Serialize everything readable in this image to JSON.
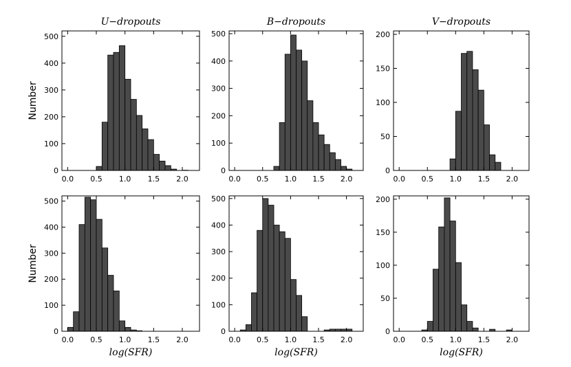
{
  "chart_data": [
    {
      "type": "bar",
      "title": "U−dropouts",
      "xlabel": "",
      "ylabel": "Number",
      "xlim": [
        -0.1,
        2.3
      ],
      "ylim": [
        0,
        520
      ],
      "xticks": [
        0.0,
        0.5,
        1.0,
        1.5,
        2.0
      ],
      "xtick_labels": [
        "0.0",
        "0.5",
        "1.0",
        "1.5",
        "2.0"
      ],
      "yticks": [
        0,
        100,
        200,
        300,
        400,
        500
      ],
      "ytick_labels": [
        "0",
        "100",
        "200",
        "300",
        "400",
        "500"
      ],
      "bin_width": 0.1,
      "x": [
        0.5,
        0.6,
        0.7,
        0.8,
        0.9,
        1.0,
        1.1,
        1.2,
        1.3,
        1.4,
        1.5,
        1.6,
        1.7,
        1.8,
        1.9,
        2.0
      ],
      "values": [
        15,
        180,
        430,
        440,
        465,
        340,
        265,
        205,
        155,
        115,
        60,
        35,
        18,
        5,
        0,
        1
      ]
    },
    {
      "type": "bar",
      "title": "B−dropouts",
      "xlabel": "",
      "ylabel": "",
      "xlim": [
        -0.1,
        2.3
      ],
      "ylim": [
        0,
        510
      ],
      "xticks": [
        0.0,
        0.5,
        1.0,
        1.5,
        2.0
      ],
      "xtick_labels": [
        "0.0",
        "0.5",
        "1.0",
        "1.5",
        "2.0"
      ],
      "yticks": [
        0,
        100,
        200,
        300,
        400,
        500
      ],
      "ytick_labels": [
        "0",
        "100",
        "200",
        "300",
        "400",
        "500"
      ],
      "bin_width": 0.1,
      "x": [
        0.7,
        0.8,
        0.9,
        1.0,
        1.1,
        1.2,
        1.3,
        1.4,
        1.5,
        1.6,
        1.7,
        1.8,
        1.9,
        2.0
      ],
      "values": [
        15,
        175,
        425,
        495,
        440,
        400,
        255,
        175,
        130,
        95,
        65,
        40,
        15,
        5
      ]
    },
    {
      "type": "bar",
      "title": "V−dropouts",
      "xlabel": "",
      "ylabel": "",
      "xlim": [
        -0.1,
        2.3
      ],
      "ylim": [
        0,
        205
      ],
      "xticks": [
        0.0,
        0.5,
        1.0,
        1.5,
        2.0
      ],
      "xtick_labels": [
        "0.0",
        "0.5",
        "1.0",
        "1.5",
        "2.0"
      ],
      "yticks": [
        0,
        50,
        100,
        150,
        200
      ],
      "ytick_labels": [
        "0",
        "50",
        "100",
        "150",
        "200"
      ],
      "bin_width": 0.1,
      "x": [
        0.9,
        1.0,
        1.1,
        1.2,
        1.3,
        1.4,
        1.5,
        1.6,
        1.7
      ],
      "values": [
        17,
        87,
        172,
        175,
        148,
        118,
        67,
        23,
        12
      ]
    },
    {
      "type": "bar",
      "title": "",
      "xlabel": "log(SFR)",
      "ylabel": "Number",
      "xlim": [
        -0.1,
        2.3
      ],
      "ylim": [
        0,
        520
      ],
      "xticks": [
        0.0,
        0.5,
        1.0,
        1.5,
        2.0
      ],
      "xtick_labels": [
        "0.0",
        "0.5",
        "1.0",
        "1.5",
        "2.0"
      ],
      "yticks": [
        0,
        100,
        200,
        300,
        400,
        500
      ],
      "ytick_labels": [
        "0",
        "100",
        "200",
        "300",
        "400",
        "500"
      ],
      "bin_width": 0.1,
      "x": [
        0.0,
        0.1,
        0.2,
        0.3,
        0.4,
        0.5,
        0.6,
        0.7,
        0.8,
        0.9,
        1.0,
        1.1,
        1.2
      ],
      "values": [
        15,
        75,
        410,
        515,
        505,
        430,
        320,
        215,
        155,
        40,
        15,
        5,
        2
      ]
    },
    {
      "type": "bar",
      "title": "",
      "xlabel": "log(SFR)",
      "ylabel": "",
      "xlim": [
        -0.1,
        2.3
      ],
      "ylim": [
        0,
        510
      ],
      "xticks": [
        0.0,
        0.5,
        1.0,
        1.5,
        2.0
      ],
      "xtick_labels": [
        "0.0",
        "0.5",
        "1.0",
        "1.5",
        "2.0"
      ],
      "yticks": [
        0,
        100,
        200,
        300,
        400,
        500
      ],
      "ytick_labels": [
        "0",
        "100",
        "200",
        "300",
        "400",
        "500"
      ],
      "bin_width": 0.1,
      "x": [
        0.1,
        0.2,
        0.3,
        0.4,
        0.5,
        0.6,
        0.7,
        0.8,
        0.9,
        1.0,
        1.1,
        1.2,
        1.6,
        1.7,
        1.8,
        1.9,
        2.0
      ],
      "values": [
        5,
        25,
        145,
        380,
        500,
        475,
        400,
        375,
        350,
        195,
        135,
        55,
        5,
        8,
        8,
        8,
        8
      ]
    },
    {
      "type": "bar",
      "title": "",
      "xlabel": "log(SFR)",
      "ylabel": "",
      "xlim": [
        -0.1,
        2.3
      ],
      "ylim": [
        0,
        205
      ],
      "xticks": [
        0.0,
        0.5,
        1.0,
        1.5,
        2.0
      ],
      "xtick_labels": [
        "0.0",
        "0.5",
        "1.0",
        "1.5",
        "2.0"
      ],
      "yticks": [
        0,
        50,
        100,
        150,
        200
      ],
      "ytick_labels": [
        "0",
        "50",
        "100",
        "150",
        "200"
      ],
      "bin_width": 0.1,
      "x": [
        0.4,
        0.5,
        0.6,
        0.7,
        0.8,
        0.9,
        1.0,
        1.1,
        1.2,
        1.3,
        1.6,
        1.9
      ],
      "values": [
        2,
        15,
        94,
        158,
        202,
        167,
        104,
        40,
        15,
        5,
        3,
        2
      ]
    }
  ]
}
